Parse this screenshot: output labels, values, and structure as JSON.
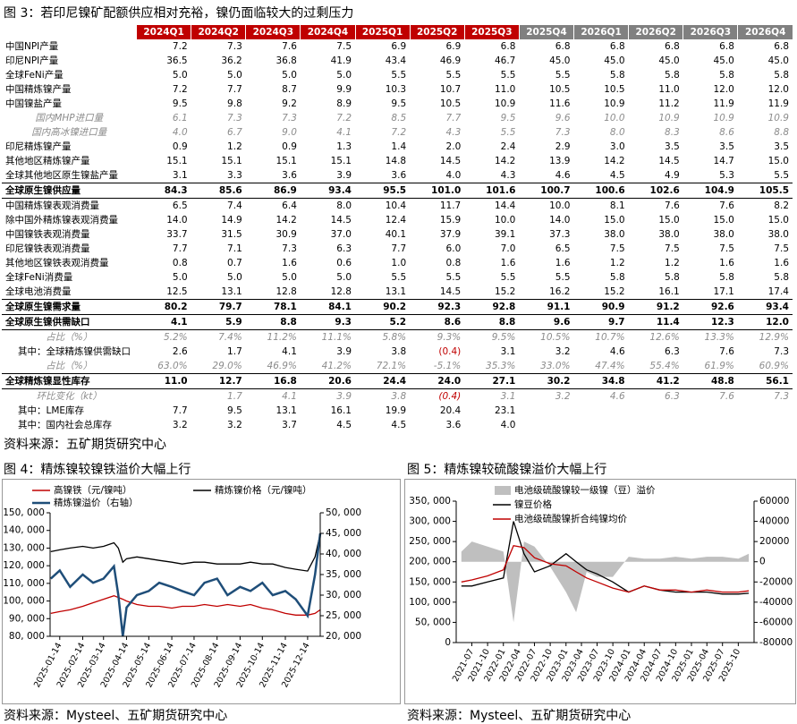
{
  "fig3": {
    "title": "图 3：若印尼镍矿配额供应相对充裕，镍仍面临较大的过剩压力",
    "table": {
      "header": [
        "2024Q1",
        "2024Q2",
        "2024Q3",
        "2024Q4",
        "2025Q1",
        "2025Q2",
        "2025Q3",
        "2025Q4",
        "2026Q1",
        "2026Q2",
        "2026Q3",
        "2026Q4"
      ],
      "rows": [
        {
          "label": "中国NPI产量",
          "cells": [
            "7.2",
            "7.3",
            "7.6",
            "7.5",
            "6.9",
            "6.9",
            "6.8",
            "6.8",
            "6.8",
            "6.8",
            "6.8",
            "6.8"
          ]
        },
        {
          "label": "印尼NPI产量",
          "cells": [
            "36.5",
            "36.2",
            "36.8",
            "41.9",
            "43.4",
            "46.9",
            "46.7",
            "45.0",
            "45.0",
            "45.0",
            "45.0",
            "45.0"
          ]
        },
        {
          "label": "全球FeNi产量",
          "cells": [
            "5.0",
            "5.0",
            "5.0",
            "5.0",
            "5.5",
            "5.5",
            "5.5",
            "5.5",
            "5.8",
            "5.8",
            "5.8",
            "5.8"
          ]
        },
        {
          "label": "中国精炼镍产量",
          "cells": [
            "7.2",
            "7.7",
            "8.7",
            "9.9",
            "10.3",
            "10.7",
            "11.0",
            "10.5",
            "10.5",
            "11.0",
            "12.0",
            "12.0"
          ]
        },
        {
          "label": "中国镍盐产量",
          "cells": [
            "9.5",
            "9.8",
            "9.2",
            "8.9",
            "9.5",
            "10.5",
            "10.9",
            "11.6",
            "10.9",
            "11.2",
            "11.9",
            "11.9"
          ]
        },
        {
          "label": "国内MHP进口量",
          "cells": [
            "6.1",
            "7.3",
            "7.3",
            "7.2",
            "8.5",
            "7.7",
            "9.5",
            "9.6",
            "10.0",
            "10.9",
            "10.9",
            "10.9"
          ]
        },
        {
          "label": "国内高冰镍进口量",
          "cells": [
            "4.0",
            "6.7",
            "9.0",
            "4.1",
            "7.2",
            "4.3",
            "5.5",
            "7.3",
            "8.0",
            "8.3",
            "8.6",
            "8.8"
          ]
        },
        {
          "label": "印尼精炼镍产量",
          "cells": [
            "0.9",
            "1.2",
            "0.9",
            "1.3",
            "1.4",
            "2.0",
            "2.4",
            "2.9",
            "3.0",
            "3.5",
            "3.5",
            "3.5"
          ]
        },
        {
          "label": "其他地区精炼镍产量",
          "cells": [
            "15.1",
            "15.1",
            "15.1",
            "15.1",
            "14.8",
            "14.5",
            "14.2",
            "13.9",
            "14.2",
            "14.5",
            "14.7",
            "15.0"
          ]
        },
        {
          "label": "全球其他地区原生镍盐产量",
          "cells": [
            "3.1",
            "3.3",
            "3.6",
            "3.9",
            "3.6",
            "4.0",
            "4.3",
            "4.6",
            "4.5",
            "4.9",
            "5.3",
            "5.5"
          ]
        },
        {
          "label": "全球原生镍供应量",
          "cells": [
            "84.3",
            "85.6",
            "86.9",
            "93.4",
            "95.5",
            "101.0",
            "101.6",
            "100.7",
            "100.6",
            "102.6",
            "104.9",
            "105.5"
          ]
        },
        {
          "label": "中国精炼镍表观消费量",
          "cells": [
            "6.5",
            "7.4",
            "6.4",
            "8.0",
            "10.4",
            "11.7",
            "14.4",
            "10.0",
            "8.1",
            "7.6",
            "7.6",
            "8.2"
          ]
        },
        {
          "label": "除中国外精炼镍表观消费量",
          "cells": [
            "14.0",
            "14.9",
            "14.2",
            "14.5",
            "12.4",
            "15.9",
            "10.0",
            "14.0",
            "15.0",
            "15.0",
            "15.0",
            "15.0"
          ]
        },
        {
          "label": "中国镍铁表观消费量",
          "cells": [
            "33.7",
            "31.5",
            "30.9",
            "37.0",
            "40.1",
            "37.9",
            "39.1",
            "37.3",
            "38.0",
            "38.0",
            "38.0",
            "38.0"
          ]
        },
        {
          "label": "印尼镍铁表观消费量",
          "cells": [
            "7.7",
            "7.1",
            "7.3",
            "6.3",
            "7.7",
            "6.0",
            "7.0",
            "6.5",
            "7.5",
            "7.5",
            "7.5",
            "7.5"
          ]
        },
        {
          "label": "其他地区镍铁表观消费量",
          "cells": [
            "0.8",
            "0.7",
            "1.6",
            "0.6",
            "1.0",
            "0.8",
            "1.6",
            "1.6",
            "1.2",
            "1.2",
            "1.6",
            "1.6"
          ]
        },
        {
          "label": "全球FeNi消费量",
          "cells": [
            "5.0",
            "5.0",
            "5.0",
            "5.0",
            "5.5",
            "5.5",
            "5.5",
            "5.5",
            "5.8",
            "5.8",
            "5.8",
            "5.8"
          ]
        },
        {
          "label": "全球电池消费量",
          "cells": [
            "12.5",
            "13.1",
            "12.8",
            "12.8",
            "13.1",
            "14.5",
            "15.2",
            "16.2",
            "15.2",
            "16.1",
            "17.1",
            "17.4"
          ]
        },
        {
          "label": "全球原生镍需求量",
          "cells": [
            "80.2",
            "79.7",
            "78.1",
            "84.1",
            "90.2",
            "92.3",
            "92.8",
            "91.1",
            "90.9",
            "91.2",
            "92.6",
            "93.4"
          ]
        },
        {
          "label": "全球原生镍供需缺口",
          "cells": [
            "4.1",
            "5.9",
            "8.8",
            "9.3",
            "5.2",
            "8.6",
            "8.8",
            "9.6",
            "9.7",
            "11.4",
            "12.3",
            "12.0"
          ]
        },
        {
          "label": "占比（%）",
          "cells": [
            "5.2%",
            "7.4%",
            "11.2%",
            "11.1%",
            "5.8%",
            "9.3%",
            "9.5%",
            "10.5%",
            "10.7%",
            "12.6%",
            "13.3%",
            "12.9%"
          ]
        },
        {
          "label": "其中：全球精炼镍供需缺口",
          "cells": [
            "2.6",
            "1.7",
            "4.1",
            "3.9",
            "3.8",
            "(0.4)",
            "3.1",
            "3.2",
            "4.6",
            "6.3",
            "7.6",
            "7.3"
          ]
        },
        {
          "label": "占比（%）",
          "cells": [
            "63.0%",
            "29.0%",
            "46.9%",
            "41.2%",
            "72.1%",
            "-5.1%",
            "35.3%",
            "33.0%",
            "47.4%",
            "55.4%",
            "61.9%",
            "60.9%"
          ]
        },
        {
          "label": "全球精炼镍显性库存",
          "cells": [
            "11.0",
            "12.7",
            "16.8",
            "20.6",
            "24.4",
            "24.0",
            "27.1",
            "30.2",
            "34.8",
            "41.2",
            "48.8",
            "56.1"
          ]
        },
        {
          "label": "环比变化（kt）",
          "cells": [
            null,
            "1.7",
            "4.1",
            "3.9",
            "3.8",
            "(0.4)",
            "3.1",
            "3.2",
            "4.6",
            "6.3",
            "7.6",
            "7.3"
          ]
        },
        {
          "label": "其中：LME库存",
          "cells": [
            "7.7",
            "9.5",
            "13.1",
            "16.1",
            "19.9",
            "20.4",
            "23.1",
            null,
            null,
            null,
            null,
            null
          ]
        },
        {
          "label": "其中：国内社会总库存",
          "cells": [
            "3.2",
            "3.2",
            "3.7",
            "4.5",
            "4.5",
            "3.6",
            "4.0",
            null,
            null,
            null,
            null,
            null
          ]
        }
      ]
    },
    "source": "资料来源：五矿期货研究中心"
  },
  "chart_data": [
    {
      "type": "line",
      "title": "图 4：精炼镍较镍铁溢价大幅上行",
      "source": "资料来源：Mysteel、五矿期货研究中心",
      "x": [
        "2025-01-02",
        "2025-01-14",
        "2025-01-28",
        "2025-02-14",
        "2025-02-28",
        "2025-03-14",
        "2025-03-28",
        "2025-04-03",
        "2025-04-09",
        "2025-04-14",
        "2025-04-28",
        "2025-05-14",
        "2025-05-28",
        "2025-06-14",
        "2025-06-28",
        "2025-07-14",
        "2025-07-28",
        "2025-08-14",
        "2025-08-28",
        "2025-09-14",
        "2025-09-28",
        "2025-10-14",
        "2025-10-28",
        "2025-11-14",
        "2025-11-28",
        "2025-12-14",
        "2025-12-24",
        "2025-12-31"
      ],
      "xlim": [
        "2025-01-01",
        "2025-12-31"
      ],
      "xticks": [
        "2025-01-14",
        "2025-02-14",
        "2025-03-14",
        "2025-04-14",
        "2025-05-14",
        "2025-06-14",
        "2025-07-14",
        "2025-08-14",
        "2025-09-14",
        "2025-10-14",
        "2025-11-14",
        "2025-12-14"
      ],
      "ylim": [
        80000,
        150000
      ],
      "yticks": [
        {
          "value": 80000,
          "label": "80, 000"
        },
        {
          "value": 90000,
          "label": "90, 000"
        },
        {
          "value": 100000,
          "label": "100, 000"
        },
        {
          "value": 110000,
          "label": "110, 000"
        },
        {
          "value": 120000,
          "label": "120, 000"
        },
        {
          "value": 130000,
          "label": "130, 000"
        },
        {
          "value": 140000,
          "label": "140, 000"
        },
        {
          "value": 150000,
          "label": "150, 000"
        }
      ],
      "y2lim": [
        20000,
        50000
      ],
      "y2ticks": [
        {
          "value": 20000,
          "label": "20, 000"
        },
        {
          "value": 25000,
          "label": "25, 000"
        },
        {
          "value": 30000,
          "label": "30, 000"
        },
        {
          "value": 35000,
          "label": "35, 000"
        },
        {
          "value": 40000,
          "label": "40, 000"
        },
        {
          "value": 45000,
          "label": "45, 000"
        },
        {
          "value": 50000,
          "label": "50, 000"
        }
      ],
      "series": [
        {
          "name": "高镍铁（元/镍吨）",
          "color": "#c00000",
          "values": [
            93000,
            94000,
            95000,
            97000,
            99000,
            101000,
            103000,
            102000,
            101000,
            100000,
            98000,
            97000,
            97000,
            96000,
            97000,
            97000,
            98000,
            97000,
            98000,
            97000,
            98000,
            96000,
            95000,
            93000,
            92000,
            92000,
            93000,
            95000
          ]
        },
        {
          "name": "精炼镍价格（元/镍吨）",
          "color": "#000000",
          "values": [
            128000,
            129000,
            130000,
            131000,
            130000,
            131000,
            133000,
            130000,
            122000,
            124000,
            125000,
            124000,
            123000,
            122000,
            121000,
            122000,
            122000,
            121000,
            121000,
            121000,
            122000,
            121000,
            121000,
            119000,
            118000,
            117000,
            125000,
            138000
          ]
        },
        {
          "name": "精炼镍溢价（右轴）",
          "color": "#1f4e79",
          "axis": "y2",
          "values": [
            34000,
            36000,
            32000,
            35000,
            33000,
            34000,
            37000,
            30000,
            20000,
            27000,
            30000,
            31000,
            33000,
            32000,
            31000,
            30000,
            33000,
            34000,
            30000,
            32000,
            31000,
            33000,
            30000,
            31000,
            29000,
            25000,
            35000,
            45000
          ]
        }
      ]
    },
    {
      "type": "line",
      "title": "图 5：精炼镍较硫酸镍溢价大幅上行",
      "source": "资料来源：Mysteel、五矿期货研究中心",
      "x": [
        "2021-05",
        "2021-07",
        "2021-10",
        "2022-01",
        "2022-03",
        "2022-05",
        "2022-07",
        "2022-10",
        "2023-01",
        "2023-03",
        "2023-05",
        "2023-07",
        "2023-10",
        "2024-01",
        "2024-04",
        "2024-07",
        "2024-10",
        "2025-01",
        "2025-04",
        "2025-07",
        "2025-10",
        "2025-12"
      ],
      "xlim": [
        "2021-04",
        "2026-01"
      ],
      "xticks": [
        "2021-07",
        "2021-10",
        "2022-01",
        "2022-04",
        "2022-07",
        "2022-10",
        "2023-01",
        "2023-04",
        "2023-07",
        "2023-10",
        "2024-01",
        "2024-04",
        "2024-07",
        "2024-10",
        "2025-01",
        "2025-04",
        "2025-07",
        "2025-10"
      ],
      "ylim": [
        0,
        350000
      ],
      "yticks": [
        0,
        {
          "value": 50000,
          "label": "50, 000"
        },
        {
          "value": 100000,
          "label": "100, 000"
        },
        {
          "value": 150000,
          "label": "150, 000"
        },
        {
          "value": 200000,
          "label": "200, 000"
        },
        {
          "value": 250000,
          "label": "250, 000"
        },
        {
          "value": 300000,
          "label": "300, 000"
        },
        {
          "value": 350000,
          "label": "350, 000"
        }
      ],
      "y2lim": [
        -80000,
        60000
      ],
      "y2ticks": [
        -80000,
        -60000,
        -40000,
        -20000,
        0,
        20000,
        40000,
        60000
      ],
      "series": [
        {
          "name": "电池级硫酸镍较一级镍（豆）溢价",
          "color": "#bfbfbf",
          "axis": "y2",
          "area": true,
          "values": [
            10000,
            20000,
            15000,
            10000,
            -60000,
            20000,
            15000,
            -5000,
            -30000,
            -50000,
            -10000,
            -15000,
            -15000,
            5000,
            3000,
            3000,
            5000,
            3000,
            5000,
            5000,
            3000,
            8000
          ]
        },
        {
          "name": "镍豆价格",
          "color": "#000000",
          "values": [
            140000,
            140000,
            150000,
            160000,
            300000,
            220000,
            175000,
            190000,
            220000,
            200000,
            180000,
            170000,
            150000,
            125000,
            140000,
            130000,
            125000,
            125000,
            125000,
            120000,
            120000,
            122000
          ]
        },
        {
          "name": "电池级硫酸镍折合纯镍均价",
          "color": "#c00000",
          "values": [
            150000,
            155000,
            165000,
            180000,
            240000,
            235000,
            210000,
            195000,
            190000,
            175000,
            160000,
            150000,
            135000,
            125000,
            140000,
            130000,
            130000,
            125000,
            130000,
            125000,
            125000,
            128000
          ]
        }
      ]
    }
  ]
}
